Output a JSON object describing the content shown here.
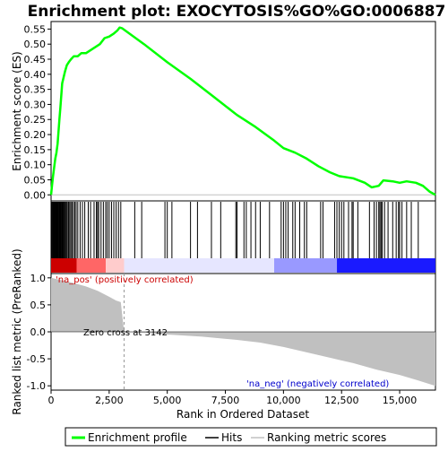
{
  "chart_data": {
    "type": "line",
    "title": "Enrichment plot: EXOCYTOSIS%GO%GO:0006887",
    "x_label": "Rank in Ordered Dataset",
    "x_ticks": [
      0,
      2500,
      5000,
      7500,
      10000,
      12500,
      15000
    ],
    "x_tick_labels": [
      "0",
      "2,500",
      "5,000",
      "7,500",
      "10,000",
      "12,500",
      "15,000"
    ],
    "xlim": [
      0,
      16540
    ],
    "es_panel": {
      "y_label": "Enrichment score (ES)",
      "ylim": [
        -0.02,
        0.575
      ],
      "y_ticks": [
        0.0,
        0.05,
        0.1,
        0.15,
        0.2,
        0.25,
        0.3,
        0.35,
        0.4,
        0.45,
        0.5,
        0.55
      ],
      "y_tick_labels": [
        "0.00",
        "0.05",
        "0.10",
        "0.15",
        "0.20",
        "0.25",
        "0.30",
        "0.35",
        "0.40",
        "0.45",
        "0.50",
        "0.55"
      ],
      "profile_color": "#00ff00",
      "profile_points": [
        [
          0,
          0.0
        ],
        [
          40,
          0.03
        ],
        [
          80,
          0.06
        ],
        [
          130,
          0.09
        ],
        [
          180,
          0.12
        ],
        [
          230,
          0.14
        ],
        [
          280,
          0.17
        ],
        [
          320,
          0.21
        ],
        [
          360,
          0.25
        ],
        [
          400,
          0.29
        ],
        [
          440,
          0.33
        ],
        [
          480,
          0.37
        ],
        [
          540,
          0.39
        ],
        [
          600,
          0.41
        ],
        [
          680,
          0.43
        ],
        [
          760,
          0.44
        ],
        [
          860,
          0.45
        ],
        [
          980,
          0.46
        ],
        [
          1150,
          0.46
        ],
        [
          1300,
          0.47
        ],
        [
          1500,
          0.47
        ],
        [
          1700,
          0.48
        ],
        [
          1900,
          0.49
        ],
        [
          2100,
          0.5
        ],
        [
          2300,
          0.52
        ],
        [
          2500,
          0.525
        ],
        [
          2700,
          0.535
        ],
        [
          2850,
          0.545
        ],
        [
          2950,
          0.555
        ],
        [
          3050,
          0.553
        ],
        [
          3142,
          0.548
        ],
        [
          4000,
          0.5
        ],
        [
          5000,
          0.44
        ],
        [
          6000,
          0.385
        ],
        [
          7000,
          0.325
        ],
        [
          8000,
          0.265
        ],
        [
          8800,
          0.225
        ],
        [
          9600,
          0.18
        ],
        [
          10000,
          0.155
        ],
        [
          10500,
          0.14
        ],
        [
          11000,
          0.12
        ],
        [
          11500,
          0.095
        ],
        [
          12000,
          0.075
        ],
        [
          12400,
          0.062
        ],
        [
          13000,
          0.055
        ],
        [
          13500,
          0.04
        ],
        [
          13800,
          0.025
        ],
        [
          14100,
          0.03
        ],
        [
          14300,
          0.048
        ],
        [
          14700,
          0.045
        ],
        [
          15000,
          0.04
        ],
        [
          15300,
          0.045
        ],
        [
          15700,
          0.04
        ],
        [
          16000,
          0.03
        ],
        [
          16300,
          0.01
        ],
        [
          16540,
          0.0
        ]
      ]
    },
    "hits_panel": {
      "hit_color": "#000000",
      "hit_positions": [
        30,
        60,
        95,
        120,
        150,
        175,
        200,
        225,
        250,
        275,
        300,
        330,
        360,
        385,
        410,
        440,
        470,
        500,
        540,
        580,
        620,
        660,
        700,
        750,
        800,
        850,
        900,
        960,
        1020,
        1080,
        1150,
        1250,
        1350,
        1450,
        1600,
        1700,
        1850,
        1950,
        2000,
        2050,
        2150,
        2250,
        2350,
        2420,
        2500,
        2600,
        2700,
        2800,
        2900,
        3000,
        3600,
        3900,
        4900,
        5000,
        5200,
        6000,
        6300,
        6900,
        7300,
        7950,
        8000,
        8300,
        8400,
        8600,
        8800,
        9000,
        9400,
        9900,
        10000,
        10100,
        10200,
        10400,
        10500,
        10700,
        10900,
        11000,
        11600,
        11700,
        12200,
        12300,
        12400,
        12500,
        12600,
        12800,
        12950,
        13000,
        13200,
        13700,
        13900,
        14000,
        14100,
        14150,
        14200,
        14250,
        14350,
        14500,
        14700,
        14850,
        14950,
        15000,
        15100,
        15300,
        15500,
        15800
      ],
      "heat_colors": [
        "#cc0000",
        "#ff6666",
        "#ffcccc",
        "#e6e6ff",
        "#9999ff",
        "#1a1aff"
      ]
    },
    "metric_panel": {
      "y_label": "Ranked list metric (PreRanked)",
      "ylim": [
        -1.08,
        1.08
      ],
      "y_ticks": [
        1.0,
        0.5,
        0.0,
        -0.5,
        -1.0
      ],
      "y_tick_labels": [
        "1.0",
        "0.5",
        "0.0",
        "-0.5",
        "-1.0"
      ],
      "fill_color": "#c0c0c0",
      "metric_points": [
        [
          0,
          1.0
        ],
        [
          200,
          0.98
        ],
        [
          500,
          0.95
        ],
        [
          1000,
          0.9
        ],
        [
          1500,
          0.84
        ],
        [
          2000,
          0.76
        ],
        [
          2500,
          0.65
        ],
        [
          2800,
          0.58
        ],
        [
          3000,
          0.55
        ],
        [
          3142,
          0.0
        ],
        [
          4000,
          -0.02
        ],
        [
          5000,
          -0.05
        ],
        [
          6500,
          -0.09
        ],
        [
          8000,
          -0.15
        ],
        [
          9000,
          -0.2
        ],
        [
          10000,
          -0.28
        ],
        [
          11000,
          -0.38
        ],
        [
          12000,
          -0.48
        ],
        [
          13000,
          -0.58
        ],
        [
          14000,
          -0.7
        ],
        [
          15000,
          -0.8
        ],
        [
          15800,
          -0.9
        ],
        [
          16300,
          -0.97
        ],
        [
          16540,
          -1.0
        ]
      ],
      "zero_cross_label": "Zero cross at 3142",
      "zero_cross_rank": 3142,
      "pos_label": "'na_pos' (positively correlated)",
      "neg_label": "'na_neg' (negatively correlated)",
      "pos_label_color": "#cc0000",
      "neg_label_color": "#0000cc"
    },
    "legend": [
      {
        "label": "Enrichment profile",
        "color": "#00ff00",
        "style": "thick-line"
      },
      {
        "label": "Hits",
        "color": "#000000",
        "style": "line"
      },
      {
        "label": "Ranking metric scores",
        "color": "#c0c0c0",
        "style": "line"
      }
    ]
  }
}
